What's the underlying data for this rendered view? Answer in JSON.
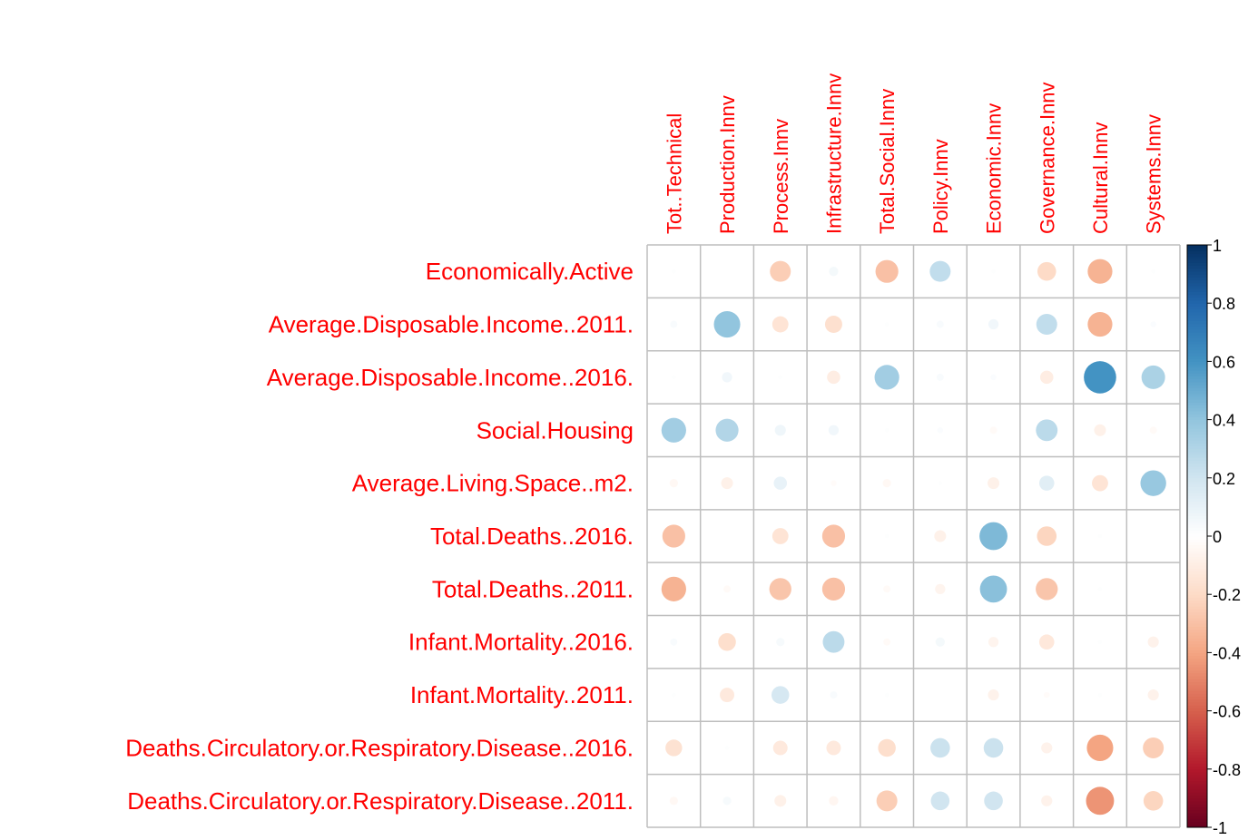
{
  "chart_data": {
    "type": "corrplot",
    "columns": [
      "Tot..Technical",
      "Production.Innv",
      "Process.Innv",
      "Infrastructure.Innv",
      "Total.Social.Innv",
      "Policy.Innv",
      "Economic.Innv",
      "Governance.Innv",
      "Cultural.Innv",
      "Systems.Innv"
    ],
    "rows": [
      "Economically.Active",
      "Average.Disposable.Income..2011.",
      "Average.Disposable.Income..2016.",
      "Social.Housing",
      "Average.Living.Space..m2.",
      "Total.Deaths..2016.",
      "Total.Deaths..2011.",
      "Infant.Mortality..2016.",
      "Infant.Mortality..2011.",
      "Deaths.Circulatory.or.Respiratory.Disease..2016.",
      "Deaths.Circulatory.or.Respiratory.Disease..2011."
    ],
    "values": [
      [
        0.01,
        0,
        -0.25,
        0.05,
        -0.3,
        0.25,
        0.01,
        -0.2,
        -0.35,
        0.01
      ],
      [
        0.03,
        0.4,
        -0.15,
        -0.17,
        0.01,
        0.03,
        0.06,
        0.25,
        -0.35,
        0.02
      ],
      [
        0.01,
        0.06,
        0.01,
        -0.1,
        0.35,
        0.03,
        0.02,
        -0.1,
        0.6,
        0.32
      ],
      [
        0.35,
        0.3,
        0.07,
        0.06,
        0.01,
        0.02,
        -0.03,
        0.27,
        -0.08,
        -0.03
      ],
      [
        -0.04,
        -0.08,
        0.1,
        -0.02,
        -0.04,
        0.01,
        -0.08,
        0.13,
        -0.15,
        0.38
      ],
      [
        -0.3,
        0,
        -0.15,
        -0.3,
        0.01,
        -0.08,
        0.45,
        -0.22,
        0.01,
        0
      ],
      [
        -0.35,
        -0.03,
        -0.28,
        -0.3,
        -0.03,
        -0.06,
        0.42,
        -0.28,
        0.01,
        0
      ],
      [
        0.03,
        -0.18,
        0.04,
        0.27,
        -0.03,
        0.05,
        -0.06,
        -0.13,
        0.01,
        -0.07
      ],
      [
        0.01,
        -0.12,
        0.18,
        0.03,
        0.01,
        0,
        -0.07,
        -0.02,
        0.01,
        -0.07
      ],
      [
        -0.16,
        0.01,
        -0.12,
        -0.12,
        -0.18,
        0.22,
        0.22,
        -0.07,
        -0.4,
        -0.25
      ],
      [
        -0.04,
        0.04,
        -0.08,
        -0.05,
        -0.25,
        0.2,
        0.2,
        -0.07,
        -0.45,
        -0.22
      ]
    ],
    "clim": [
      -1,
      1
    ],
    "cticks": [
      1,
      0.8,
      0.6,
      0.4,
      0.2,
      0,
      -0.2,
      -0.4,
      -0.6,
      -0.8,
      -1
    ],
    "palette": [
      "#67001F",
      "#B2182B",
      "#D6604D",
      "#F4A582",
      "#FDDBC7",
      "#FFFFFF",
      "#D1E5F0",
      "#92C5DE",
      "#4393C3",
      "#2166AC",
      "#053061"
    ],
    "label_color": "#ff0000",
    "grid_color": "#bebebe"
  }
}
